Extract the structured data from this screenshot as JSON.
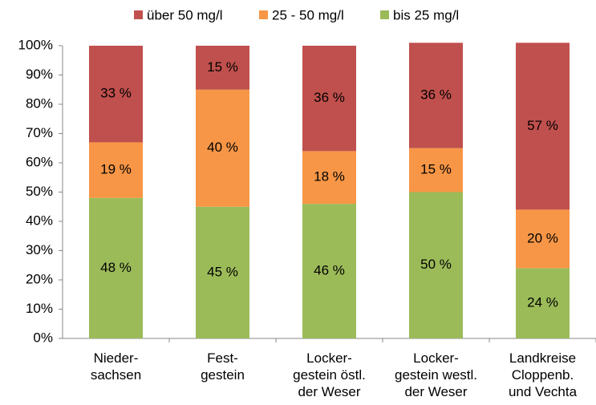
{
  "chart_data": {
    "type": "stacked_bar",
    "categories": [
      "Nieder-\nsachsen",
      "Fest-\ngestein",
      "Locker-\ngestein östl.\nder Weser",
      "Locker-\ngestein westl.\nder Weser",
      "Landkreise\nCloppenb.\nund Vechta"
    ],
    "series": [
      {
        "name": "bis 25 mg/l",
        "color": "#9bbb59",
        "values": [
          48,
          45,
          46,
          50,
          24
        ],
        "value_labels": [
          "48 %",
          "45 %",
          "46 %",
          "50 %",
          "24 %"
        ]
      },
      {
        "name": "25 - 50 mg/l",
        "color": "#f79646",
        "values": [
          19,
          40,
          18,
          15,
          20
        ],
        "value_labels": [
          "19 %",
          "40 %",
          "18 %",
          "15 %",
          "20 %"
        ]
      },
      {
        "name": "über 50 mg/l",
        "color": "#c0504d",
        "values": [
          33,
          15,
          36,
          36,
          57
        ],
        "value_labels": [
          "33 %",
          "15 %",
          "36 %",
          "36 %",
          "57 %"
        ]
      }
    ],
    "ylim": [
      0,
      100
    ],
    "yticks": [
      {
        "value": 0,
        "label": "0%"
      },
      {
        "value": 10,
        "label": "10%"
      },
      {
        "value": 20,
        "label": "20%"
      },
      {
        "value": 30,
        "label": "30%"
      },
      {
        "value": 40,
        "label": "40%"
      },
      {
        "value": 50,
        "label": "50%"
      },
      {
        "value": 60,
        "label": "60%"
      },
      {
        "value": 70,
        "label": "70%"
      },
      {
        "value": 80,
        "label": "80%"
      },
      {
        "value": 90,
        "label": "90%"
      },
      {
        "value": 100,
        "label": "100%"
      }
    ],
    "legend": "top"
  }
}
